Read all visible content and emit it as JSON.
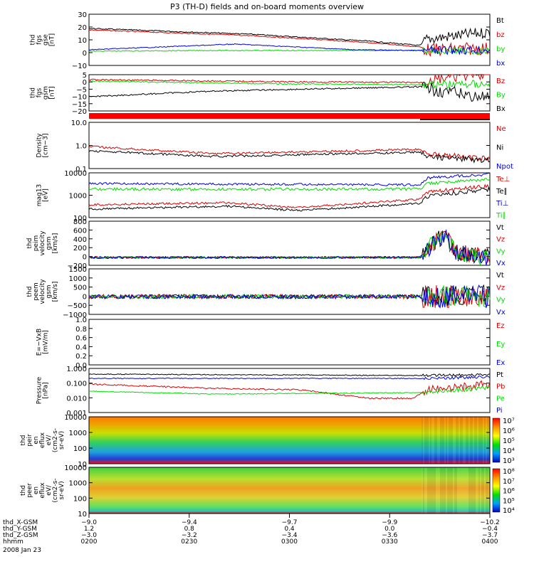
{
  "title": "P3 (TH-D) fields and on-board moments overview",
  "date_label": "2008 Jan 23",
  "colors": {
    "black": "#000000",
    "red": "#dd0000",
    "green": "#00dd00",
    "blue": "#0000dd",
    "bar_red": "#ff0000"
  },
  "panels": [
    {
      "id": "fgs-gse",
      "ylabel": [
        "thd",
        "fgs",
        "gse",
        "[nT]"
      ],
      "ticks": [
        "30",
        "20",
        "10",
        "0",
        "−10"
      ],
      "legend": [
        {
          "text": "Bt",
          "color": "black"
        },
        {
          "text": "bz",
          "color": "red"
        },
        {
          "text": "by",
          "color": "green"
        },
        {
          "text": "bx",
          "color": "blue"
        }
      ]
    },
    {
      "id": "fgs-gsm",
      "ylabel": [
        "thd",
        "fgs",
        "gsm",
        "[nT]"
      ],
      "ticks": [
        "5",
        "0",
        "−5",
        "−10",
        "−15",
        "−20"
      ],
      "legend": [
        {
          "text": "Bz",
          "color": "red"
        },
        {
          "text": "By",
          "color": "green"
        },
        {
          "text": "Bx",
          "color": "black"
        }
      ]
    },
    {
      "id": "density",
      "ylabel": [
        "Density",
        "[cm−3]"
      ],
      "ticks": [
        "10.0",
        "1.0",
        "0.1"
      ],
      "legend": [
        {
          "text": "Ne",
          "color": "red"
        },
        {
          "text": "Ni",
          "color": "black"
        },
        {
          "text": "Npot",
          "color": "blue"
        }
      ]
    },
    {
      "id": "temp",
      "ylabel": [
        "mag13",
        "[eV]"
      ],
      "ticks": [
        "10000",
        "1000",
        "100"
      ],
      "legend": [
        {
          "text": "Te⊥",
          "color": "red"
        },
        {
          "text": "Te∥",
          "color": "black"
        },
        {
          "text": "Ti⊥",
          "color": "blue"
        },
        {
          "text": "Ti∥",
          "color": "green"
        }
      ]
    },
    {
      "id": "peim-vel",
      "ylabel": [
        "thd",
        "peim",
        "velocity",
        "gsm",
        "[km/s]"
      ],
      "ticks": [
        "800",
        "600",
        "400",
        "200",
        "0",
        "−200"
      ],
      "legend": [
        {
          "text": "Vt",
          "color": "black"
        },
        {
          "text": "Vz",
          "color": "red"
        },
        {
          "text": "Vy",
          "color": "green"
        },
        {
          "text": "Vx",
          "color": "blue"
        }
      ]
    },
    {
      "id": "peem-vel",
      "ylabel": [
        "thd",
        "peem",
        "velocity",
        "gsm",
        "[km/s]"
      ],
      "ticks": [
        "1500",
        "1000",
        "500",
        "0",
        "−500",
        "−1000"
      ],
      "legend": [
        {
          "text": "Vt",
          "color": "black"
        },
        {
          "text": "Vz",
          "color": "red"
        },
        {
          "text": "Vy",
          "color": "green"
        },
        {
          "text": "Vx",
          "color": "blue"
        }
      ]
    },
    {
      "id": "efield",
      "ylabel": [
        "E=−VxB",
        "[mV/m]"
      ],
      "ticks": [
        "1.0",
        "0.8",
        "0.6",
        "0.4",
        "0.2",
        "0.0"
      ],
      "legend": [
        {
          "text": "Ez",
          "color": "red"
        },
        {
          "text": "Ey",
          "color": "green"
        },
        {
          "text": "Ex",
          "color": "blue"
        }
      ]
    },
    {
      "id": "pressure",
      "ylabel": [
        "Pressure",
        "[nPa]"
      ],
      "ticks": [
        "1.000",
        "0.100",
        "0.010",
        "0.001"
      ],
      "legend": [
        {
          "text": "Pt",
          "color": "black"
        },
        {
          "text": "Pb",
          "color": "red"
        },
        {
          "text": "Pe",
          "color": "green"
        },
        {
          "text": "Pi",
          "color": "blue"
        }
      ]
    },
    {
      "id": "peir-spec",
      "ylabel": [
        "thd",
        "peir",
        "en",
        "eflux",
        "eV/",
        "(cm2-s-",
        "sr-eV)"
      ],
      "ticks": [
        "10000",
        "1000",
        "100",
        "10"
      ],
      "cbar": [
        "10⁷",
        "10⁶",
        "10⁵",
        "10⁴",
        "10³"
      ]
    },
    {
      "id": "peer-spec",
      "ylabel": [
        "thd",
        "peer",
        "en",
        "eflux",
        "eV/",
        "(cm2-s-",
        "sr-eV)"
      ],
      "ticks": [
        "10000",
        "1000",
        "100",
        "10"
      ],
      "cbar": [
        "10⁸",
        "10⁷",
        "10⁶",
        "10⁵",
        "10⁴"
      ]
    }
  ],
  "xaxis": {
    "labels": [
      "thd_X-GSM",
      "thd_Y-GSM",
      "thd_Z-GSM",
      "hhmm"
    ],
    "columns": [
      [
        "−9.0",
        "1.2",
        "−3.0",
        "0200"
      ],
      [
        "−9.4",
        "0.8",
        "−3.2",
        "0230"
      ],
      [
        "−9.7",
        "0.4",
        "−3.4",
        "0300"
      ],
      [
        "−9.9",
        "0.0",
        "−3.6",
        "0330"
      ],
      [
        "−10.2",
        "−0.4",
        "−3.7",
        "0400"
      ]
    ]
  },
  "chart_data": {
    "type": "line",
    "title": "P3 (TH-D) fields and on-board moments overview",
    "date": "2008 Jan 23",
    "time_range": [
      "0200",
      "0400"
    ],
    "x_ticks": [
      "0200",
      "0230",
      "0300",
      "0330",
      "0400"
    ],
    "series": [
      {
        "name": "Bt",
        "panel": "fgs-gse",
        "x": [
          "0200",
          "0230",
          "0300",
          "0330",
          "0342",
          "0400"
        ],
        "values": [
          17,
          13,
          10,
          7,
          6,
          15
        ]
      },
      {
        "name": "bz",
        "panel": "fgs-gse",
        "x": [
          "0200",
          "0230",
          "0300",
          "0330",
          "0342",
          "0400"
        ],
        "values": [
          16,
          12,
          9,
          6,
          3,
          8
        ]
      },
      {
        "name": "by",
        "panel": "fgs-gse",
        "x": [
          "0200",
          "0230",
          "0300",
          "0330",
          "0342",
          "0400"
        ],
        "values": [
          -1,
          -1,
          -1,
          -1,
          0,
          -1
        ]
      },
      {
        "name": "bx",
        "panel": "fgs-gse",
        "x": [
          "0200",
          "0230",
          "0300",
          "0330",
          "0342",
          "0400"
        ],
        "values": [
          0,
          2,
          3,
          0,
          -3,
          0
        ]
      },
      {
        "name": "Bz",
        "panel": "fgs-gsm",
        "x": [
          "0200",
          "0230",
          "0300",
          "0330",
          "0342",
          "0400"
        ],
        "values": [
          -1,
          -1,
          -2,
          -2,
          0,
          3
        ]
      },
      {
        "name": "By",
        "panel": "fgs-gsm",
        "x": [
          "0200",
          "0230",
          "0300",
          "0330",
          "0342",
          "0400"
        ],
        "values": [
          -1,
          -2,
          -2,
          -3,
          -1,
          -2
        ]
      },
      {
        "name": "Bx",
        "panel": "fgs-gsm",
        "x": [
          "0200",
          "0230",
          "0300",
          "0330",
          "0342",
          "0400"
        ],
        "values": [
          -11,
          -9,
          -8,
          -6,
          -4,
          -8
        ]
      },
      {
        "name": "Ne",
        "panel": "density",
        "x": [
          "0200",
          "0230",
          "0300",
          "0330",
          "0342",
          "0400"
        ],
        "values": [
          0.65,
          0.45,
          0.45,
          0.55,
          0.4,
          0.3
        ]
      },
      {
        "name": "Ni",
        "panel": "density",
        "x": [
          "0200",
          "0230",
          "0300",
          "0330",
          "0342",
          "0400"
        ],
        "values": [
          0.45,
          0.35,
          0.35,
          0.45,
          0.3,
          0.25
        ]
      },
      {
        "name": "Te⊥",
        "panel": "temp",
        "x": [
          "0200",
          "0230",
          "0300",
          "0330",
          "0342",
          "0400"
        ],
        "values": [
          300,
          500,
          400,
          800,
          1200,
          2000
        ]
      },
      {
        "name": "Te∥",
        "panel": "temp",
        "x": [
          "0200",
          "0230",
          "0300",
          "0330",
          "0342",
          "0400"
        ],
        "values": [
          250,
          400,
          300,
          650,
          1000,
          1800
        ]
      },
      {
        "name": "Ti⊥",
        "panel": "temp",
        "x": [
          "0200",
          "0230",
          "0300",
          "0330",
          "0342",
          "0400"
        ],
        "values": [
          4500,
          4000,
          4000,
          4000,
          6000,
          7500
        ]
      },
      {
        "name": "Ti∥",
        "panel": "temp",
        "x": [
          "0200",
          "0230",
          "0300",
          "0330",
          "0342",
          "0400"
        ],
        "values": [
          3000,
          3000,
          3000,
          3000,
          4500,
          5500
        ]
      },
      {
        "name": "Pt",
        "panel": "pressure",
        "x": [
          "0200",
          "0230",
          "0300",
          "0330",
          "0342",
          "0400"
        ],
        "values": [
          0.3,
          0.25,
          0.25,
          0.25,
          0.3,
          0.3
        ]
      },
      {
        "name": "Pb",
        "panel": "pressure",
        "x": [
          "0200",
          "0230",
          "0300",
          "0330",
          "0342",
          "0400"
        ],
        "values": [
          0.12,
          0.07,
          0.04,
          0.02,
          0.05,
          0.1
        ]
      },
      {
        "name": "Pe",
        "panel": "pressure",
        "x": [
          "0200",
          "0230",
          "0300",
          "0330",
          "0342",
          "0400"
        ],
        "values": [
          0.06,
          0.04,
          0.045,
          0.05,
          0.06,
          0.1
        ]
      },
      {
        "name": "Pi",
        "panel": "pressure",
        "x": [
          "0200",
          "0230",
          "0300",
          "0330",
          "0342",
          "0400"
        ],
        "values": [
          0.2,
          0.18,
          0.18,
          0.2,
          0.15,
          0.2
        ]
      }
    ]
  }
}
